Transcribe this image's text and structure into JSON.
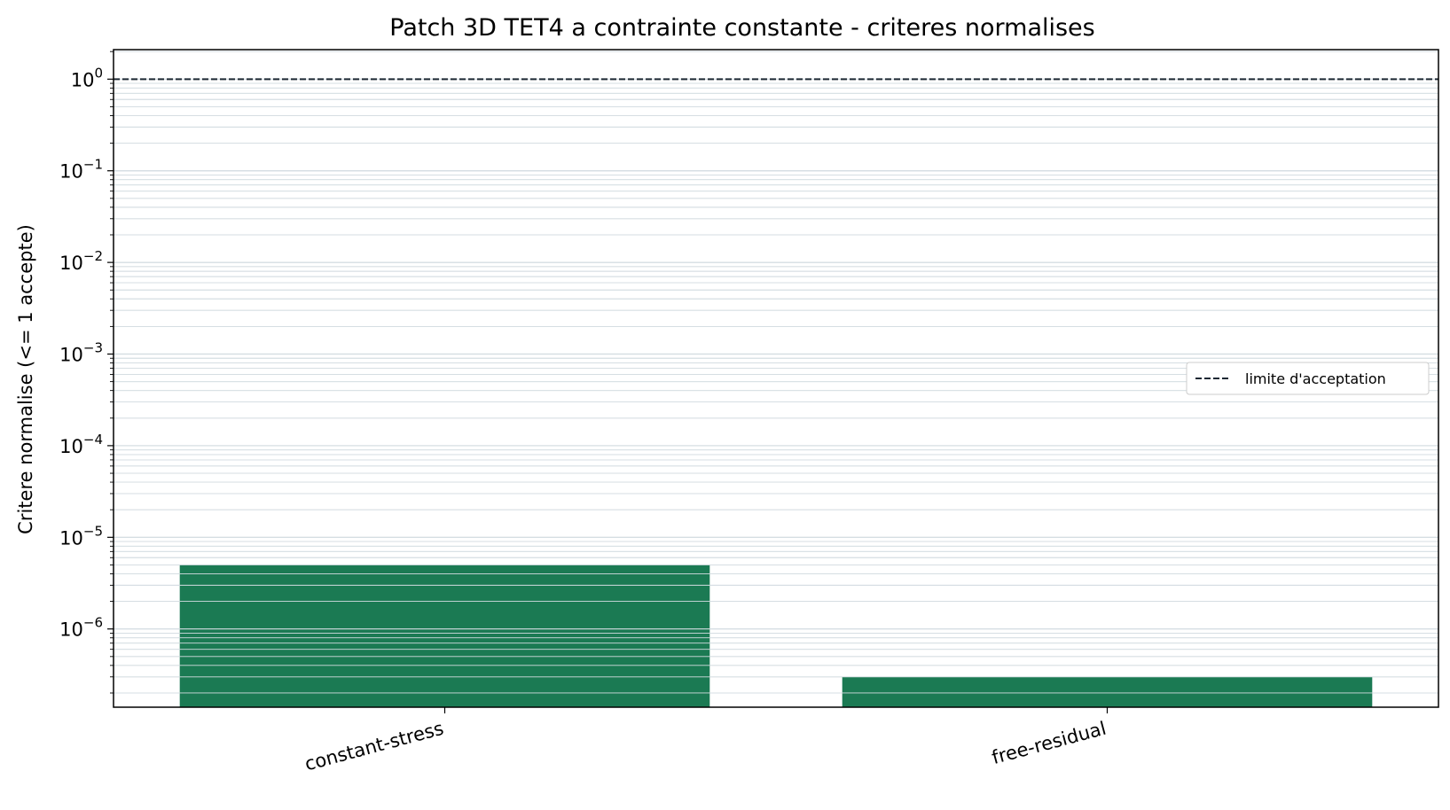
{
  "chart_data": {
    "type": "bar",
    "title": "Patch 3D TET4 a contrainte constante - criteres normalises",
    "xlabel": "",
    "ylabel": "Critere normalise (<= 1 accepte)",
    "categories": [
      "constant-stress",
      "free-residual"
    ],
    "values": [
      5e-06,
      3e-07
    ],
    "yscale": "log",
    "ylim": [
      1.4e-07,
      2.1
    ],
    "yticks": [
      1e-06,
      1e-05,
      0.0001,
      0.001,
      0.01,
      0.1,
      1
    ],
    "ytick_labels": [
      {
        "base": "10",
        "exp": "−6"
      },
      {
        "base": "10",
        "exp": "−5"
      },
      {
        "base": "10",
        "exp": "−4"
      },
      {
        "base": "10",
        "exp": "−3"
      },
      {
        "base": "10",
        "exp": "−2"
      },
      {
        "base": "10",
        "exp": "−1"
      },
      {
        "base": "10",
        "exp": "0"
      }
    ],
    "reference_line": {
      "y": 1,
      "style": "dashed",
      "label": "limite d'acceptation"
    },
    "legend": {
      "entries": [
        "limite d'acceptation"
      ],
      "placement": "center-right"
    },
    "grid": "y-major-and-minor",
    "bar_color": "#1b7a53",
    "grid_color": "#d5dde2",
    "reference_line_color": "#1c2833",
    "xtick_rotation": -15
  }
}
